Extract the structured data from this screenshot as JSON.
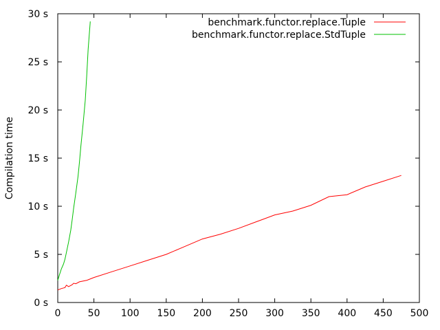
{
  "chart_data": {
    "type": "line",
    "title": "",
    "xlabel": "",
    "ylabel": "Compilation time",
    "xlim": [
      0,
      500
    ],
    "ylim": [
      0,
      30
    ],
    "x_ticks": [
      0,
      50,
      100,
      150,
      200,
      250,
      300,
      350,
      400,
      450,
      500
    ],
    "y_ticks": [
      0,
      5,
      10,
      15,
      20,
      25,
      30
    ],
    "y_tick_labels": [
      "0 s",
      "5 s",
      "10 s",
      "15 s",
      "20 s",
      "25 s",
      "30 s"
    ],
    "grid": false,
    "legend_position": "top-right",
    "series": [
      {
        "name": "benchmark.functor.replace.Tuple",
        "color": "#ff0000",
        "x": [
          0,
          5,
          10,
          12,
          15,
          20,
          22,
          25,
          30,
          40,
          50,
          75,
          100,
          125,
          150,
          175,
          200,
          225,
          250,
          275,
          300,
          325,
          350,
          375,
          400,
          425,
          450,
          475
        ],
        "y": [
          1.3,
          1.45,
          1.55,
          1.8,
          1.65,
          1.85,
          2.0,
          1.95,
          2.15,
          2.3,
          2.6,
          3.2,
          3.8,
          4.4,
          5.0,
          5.8,
          6.6,
          7.1,
          7.7,
          8.4,
          9.1,
          9.5,
          10.1,
          11.0,
          11.2,
          12.0,
          12.6,
          13.2
        ]
      },
      {
        "name": "benchmark.functor.replace.StdTuple",
        "color": "#00c000",
        "x": [
          0,
          2,
          5,
          8,
          10,
          12,
          15,
          18,
          20,
          22,
          25,
          28,
          30,
          32,
          35,
          38,
          40,
          42,
          45
        ],
        "y": [
          2.3,
          2.8,
          3.5,
          4.0,
          4.5,
          5.2,
          6.3,
          7.5,
          8.6,
          9.8,
          11.4,
          13.1,
          14.6,
          16.3,
          18.5,
          21.0,
          23.5,
          26.3,
          29.2
        ]
      }
    ]
  }
}
